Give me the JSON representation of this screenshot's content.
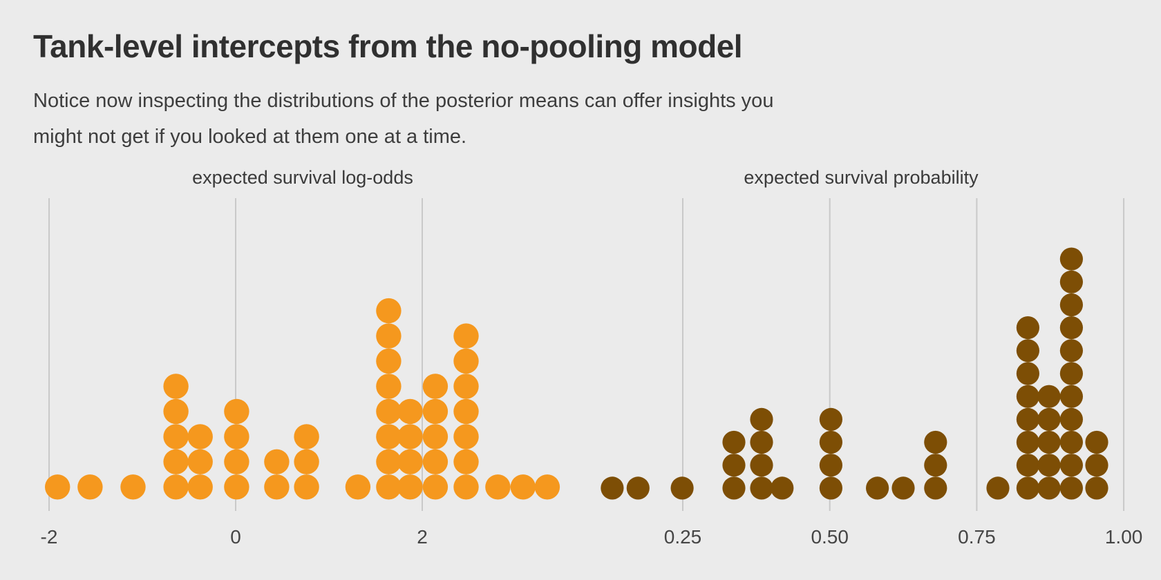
{
  "header": {
    "title": "Tank-level intercepts from the no-pooling model",
    "subtitle": "Notice now inspecting the distributions of the posterior means can offer insights you\nmight not get if you looked at them one at a time."
  },
  "colors": {
    "background": "#EBEBEB",
    "gridline": "#C9C9C9",
    "title_text": "#303030",
    "subtitle_text": "#3D3D3D",
    "panel_title_text": "#3A3A3A",
    "tick_label_text": "#454545",
    "log_odds_dot": "#F5981E",
    "probability_dot": "#7D4E05"
  },
  "chart_data": [
    {
      "type": "dotplot",
      "title": "expected survival log-odds",
      "dot_color": "#F5981E",
      "binwidth": 0.27,
      "xlim": [
        -2.2,
        3.6
      ],
      "x_ticks": [
        {
          "label": "-2",
          "value": -2
        },
        {
          "label": "0",
          "value": 0
        },
        {
          "label": "2",
          "value": 2
        }
      ],
      "stacks": [
        {
          "x": -1.91,
          "count": 1
        },
        {
          "x": -1.56,
          "count": 1
        },
        {
          "x": -1.1,
          "count": 1
        },
        {
          "x": -0.64,
          "count": 5
        },
        {
          "x": -0.38,
          "count": 3
        },
        {
          "x": 0.01,
          "count": 4
        },
        {
          "x": 0.44,
          "count": 2
        },
        {
          "x": 0.76,
          "count": 3
        },
        {
          "x": 1.31,
          "count": 1
        },
        {
          "x": 1.64,
          "count": 8
        },
        {
          "x": 1.87,
          "count": 4
        },
        {
          "x": 2.14,
          "count": 5
        },
        {
          "x": 2.47,
          "count": 7
        },
        {
          "x": 2.81,
          "count": 1
        },
        {
          "x": 3.08,
          "count": 1
        },
        {
          "x": 3.34,
          "count": 1
        }
      ]
    },
    {
      "type": "dotplot",
      "title": "expected survival probability",
      "dot_color": "#7D4E05",
      "binwidth": 0.039,
      "xlim": [
        0.1,
        1.0
      ],
      "x_ticks": [
        {
          "label": "0.25",
          "value": 0.25
        },
        {
          "label": "0.50",
          "value": 0.5
        },
        {
          "label": "0.75",
          "value": 0.75
        },
        {
          "label": "1.00",
          "value": 1.0
        }
      ],
      "stacks": [
        {
          "x": 0.13,
          "count": 1
        },
        {
          "x": 0.174,
          "count": 1
        },
        {
          "x": 0.249,
          "count": 1
        },
        {
          "x": 0.337,
          "count": 3
        },
        {
          "x": 0.384,
          "count": 4
        },
        {
          "x": 0.419,
          "count": 1
        },
        {
          "x": 0.502,
          "count": 4
        },
        {
          "x": 0.581,
          "count": 1
        },
        {
          "x": 0.625,
          "count": 1
        },
        {
          "x": 0.68,
          "count": 3
        },
        {
          "x": 0.786,
          "count": 1
        },
        {
          "x": 0.837,
          "count": 8
        },
        {
          "x": 0.873,
          "count": 5
        },
        {
          "x": 0.911,
          "count": 11
        },
        {
          "x": 0.954,
          "count": 3
        }
      ]
    }
  ]
}
